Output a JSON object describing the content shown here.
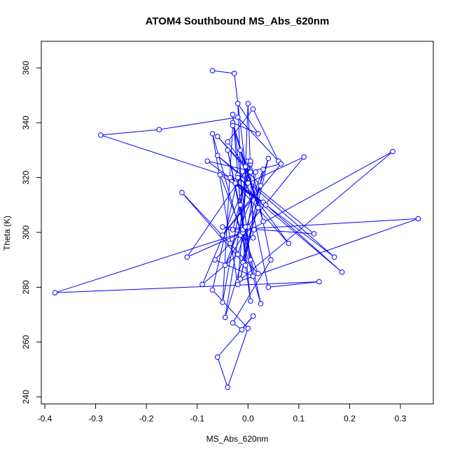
{
  "chart_data": {
    "type": "line",
    "title": "ATOM4 Southbound MS_Abs_620nm",
    "xlabel": "MS_Abs_620nm",
    "ylabel": "Theta (K)",
    "xlim": [
      -0.4,
      0.35
    ],
    "ylim": [
      240,
      365
    ],
    "xticks": [
      -0.4,
      -0.3,
      -0.2,
      -0.1,
      0.0,
      0.1,
      0.2,
      0.3
    ],
    "xtick_labels": [
      "-0.4",
      "-0.3",
      "-0.2",
      "-0.1",
      "0.0",
      "0.1",
      "0.2",
      "0.3"
    ],
    "yticks": [
      240,
      260,
      280,
      300,
      320,
      340,
      360
    ],
    "ytick_labels": [
      "240",
      "260",
      "280",
      "300",
      "320",
      "340",
      "360"
    ],
    "grid": false,
    "line_color": "#0000ff",
    "marker": "open-circle",
    "series": [
      {
        "x": [
          -0.07,
          -0.027,
          -0.005,
          -0.04,
          0.01,
          0.06,
          -0.02,
          -0.175,
          -0.29,
          0.0,
          0.11,
          -0.015,
          0.285,
          -0.02,
          0.335,
          -0.03,
          0.005,
          -0.12,
          -0.01,
          -0.38,
          0.14,
          0.04,
          -0.015,
          0.03,
          -0.03,
          0.02,
          -0.02,
          -0.01,
          0.0,
          0.01,
          -0.05,
          0.13,
          -0.06,
          0.17,
          -0.035,
          0.185,
          0.03,
          -0.08,
          0.015,
          -0.01,
          -0.13,
          0.02,
          -0.055,
          0.035,
          -0.025,
          0.08,
          -0.02,
          0.065,
          -0.05,
          0.025,
          -0.06,
          0.005,
          -0.09,
          -0.02,
          0.04,
          -0.015,
          0.03,
          -0.045,
          0.0,
          -0.035,
          -0.065,
          0.01,
          -0.04,
          0.025,
          -0.07,
          -0.02,
          0.0,
          -0.05,
          -0.03,
          0.02,
          -0.045,
          0.005,
          0.045,
          -0.03,
          -0.012,
          0.01,
          -0.06,
          -0.04,
          0.0,
          -0.07,
          -0.02,
          0.005,
          -0.005,
          -0.015,
          -0.03,
          0.005,
          -0.005,
          0.012
        ],
        "y": [
          359,
          358,
          324,
          333,
          345,
          326,
          342,
          337.5,
          335.5,
          318,
          327.5,
          299,
          329.5,
          282,
          305,
          301,
          325,
          291,
          300,
          278,
          282,
          280,
          330,
          304,
          340,
          336,
          347,
          301,
          347,
          298,
          302,
          299.5,
          328,
          291,
          320,
          285.5,
          311,
          326,
          322,
          289,
          314.5,
          285,
          321,
          310,
          318,
          296,
          321,
          325,
          299,
          317,
          335,
          322,
          281,
          292,
          327,
          283,
          323,
          288,
          302,
          296,
          290,
          284,
          330,
          274,
          336,
          281,
          326,
          274.5,
          339,
          309,
          269,
          326,
          290,
          267,
          264.5,
          269.5,
          254.5,
          243.5,
          265,
          279,
          320,
          275,
          288,
          310,
          343,
          290,
          302,
          301
        ]
      }
    ]
  }
}
